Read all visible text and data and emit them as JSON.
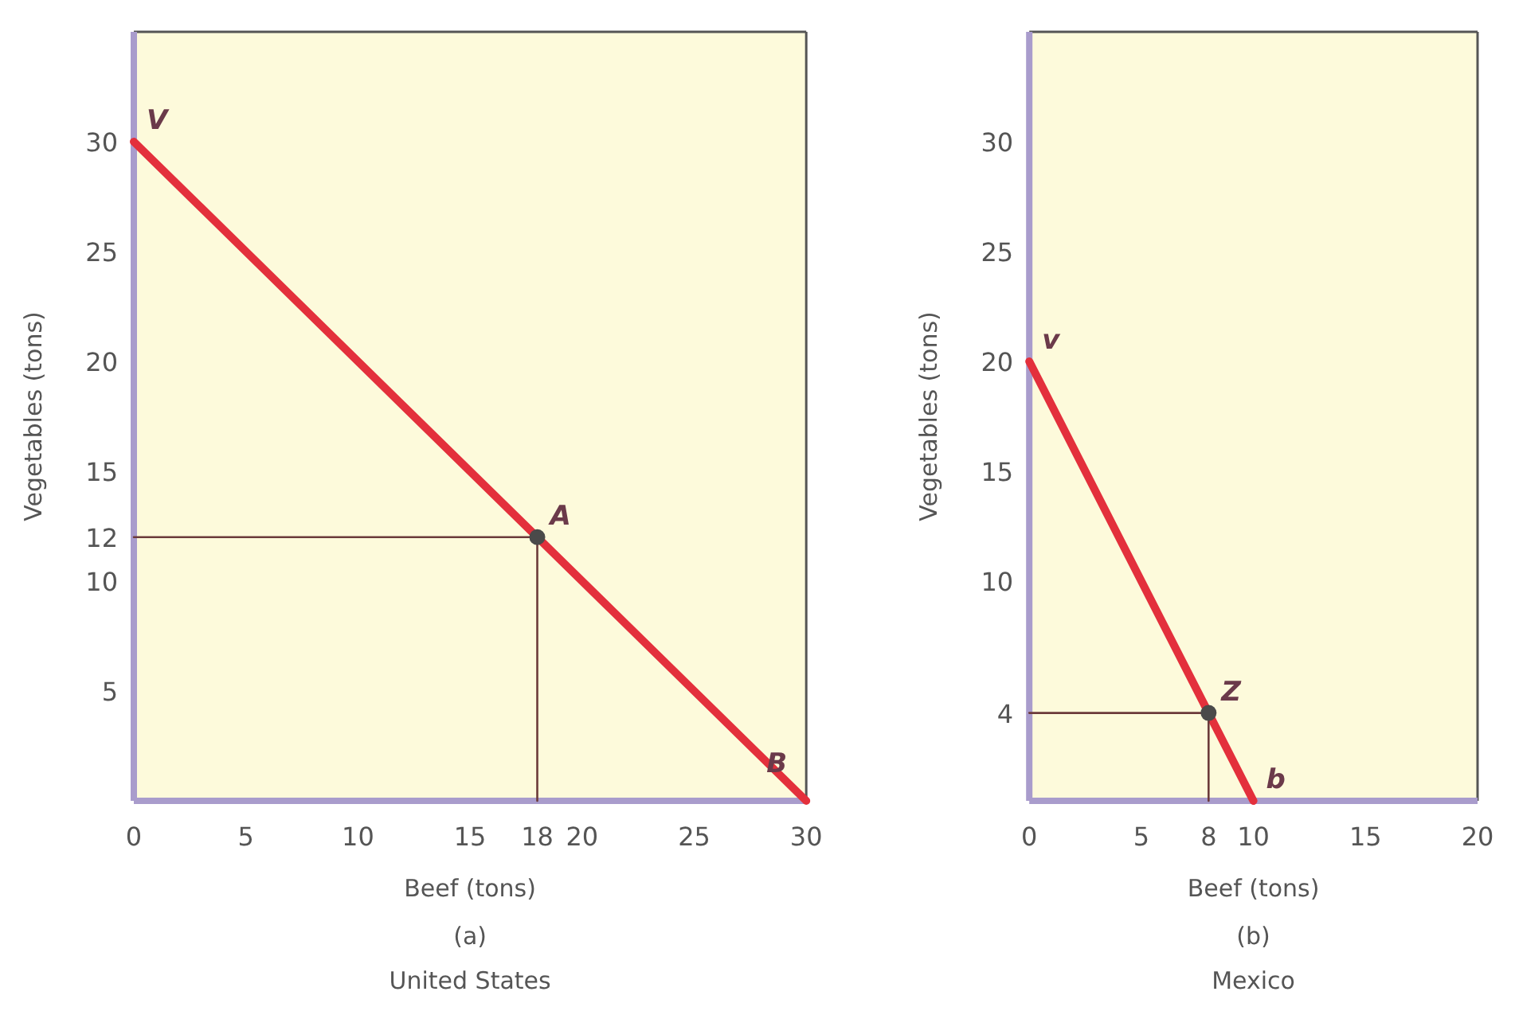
{
  "chart_data": [
    {
      "type": "line",
      "title": "United States",
      "subtitle": "(a)",
      "xlabel": "Beef (tons)",
      "ylabel": "Vegetables (tons)",
      "xlim": [
        0,
        30
      ],
      "ylim": [
        0,
        35
      ],
      "xticks": [
        0,
        5,
        10,
        15,
        18,
        20,
        25,
        30
      ],
      "yticks": [
        5,
        10,
        12,
        15,
        20,
        25,
        30
      ],
      "series": [
        {
          "color": "#e3303c",
          "x": [
            0,
            30
          ],
          "values": [
            30,
            0
          ]
        },
        {
          "color": "#6b3a3a",
          "x": [
            0,
            18,
            18
          ],
          "values": [
            12,
            12,
            0
          ]
        },
        {
          "type": "scatter",
          "color": "#4a4a4a",
          "x": [
            18
          ],
          "values": [
            12
          ],
          "marker": "circle"
        }
      ],
      "annotations": [
        {
          "text": "V",
          "x": 0,
          "y": 30
        },
        {
          "text": "A",
          "x": 18,
          "y": 12
        },
        {
          "text": "B",
          "x": 30,
          "y": 0
        }
      ]
    },
    {
      "type": "line",
      "title": "Mexico",
      "subtitle": "(b)",
      "xlabel": "Beef (tons)",
      "ylabel": "Vegetables (tons)",
      "xlim": [
        0,
        20
      ],
      "ylim": [
        0,
        35
      ],
      "xticks": [
        0,
        5,
        8,
        10,
        15,
        20
      ],
      "yticks": [
        4,
        10,
        15,
        20,
        25,
        30
      ],
      "series": [
        {
          "color": "#e3303c",
          "x": [
            0,
            10
          ],
          "values": [
            20,
            0
          ]
        },
        {
          "color": "#6b3a3a",
          "x": [
            0,
            8,
            8
          ],
          "values": [
            4,
            4,
            0
          ]
        },
        {
          "type": "scatter",
          "color": "#4a4a4a",
          "x": [
            8
          ],
          "values": [
            4
          ],
          "marker": "circle"
        }
      ],
      "annotations": [
        {
          "text": "v",
          "x": 0,
          "y": 20
        },
        {
          "text": "Z",
          "x": 8,
          "y": 4
        },
        {
          "text": "b",
          "x": 10,
          "y": 0
        }
      ]
    }
  ]
}
